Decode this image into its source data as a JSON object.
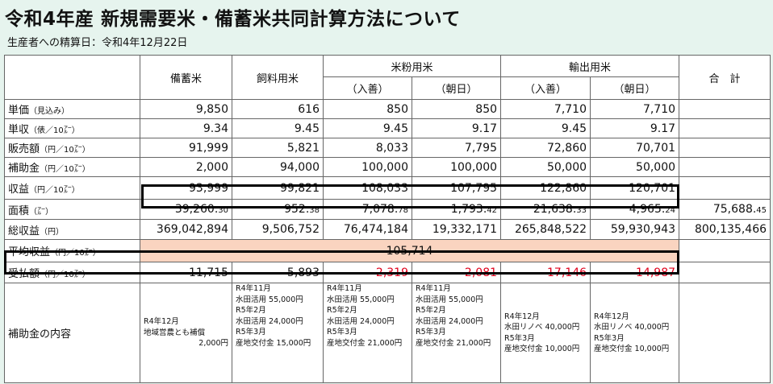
{
  "title": "令和4年産 新規需要米・備蓄米共同計算方法について",
  "subtitle": "生産者への精算日：令和4年12月22日",
  "headers": {
    "bichiku": "備蓄米",
    "shiryo": "飼料用米",
    "komeko": "米粉用米",
    "yushutsu": "輸出用米",
    "iri": "（入善）",
    "asahi": "（朝日）",
    "total": "合　計"
  },
  "rows": [
    {
      "label": "単価",
      "unit": "（見込み）",
      "values": [
        "9,850",
        "616",
        "850",
        "850",
        "7,710",
        "7,710"
      ],
      "total": ""
    },
    {
      "label": "単収",
      "unit": "（俵／10㌃）",
      "values": [
        "9.34",
        "9.45",
        "9.45",
        "9.17",
        "9.45",
        "9.17"
      ],
      "total": ""
    },
    {
      "label": "販売額",
      "unit": "（円／10㌃）",
      "values": [
        "91,999",
        "5,821",
        "8,033",
        "7,795",
        "72,860",
        "70,701"
      ],
      "total": ""
    },
    {
      "label": "補助金",
      "unit": "（円／10㌃）",
      "values": [
        "2,000",
        "94,000",
        "100,000",
        "100,000",
        "50,000",
        "50,000"
      ],
      "total": ""
    },
    {
      "label": "収益",
      "unit": "（円／10㌃）",
      "values": [
        "93,999",
        "99,821",
        "108,033",
        "107,795",
        "122,860",
        "120,701"
      ],
      "total": ""
    }
  ],
  "area": {
    "label": "面積",
    "unit": "（㌃）",
    "values": [
      {
        "int": "39,260.",
        "dec": "30"
      },
      {
        "int": "952.",
        "dec": "38"
      },
      {
        "int": "7,078.",
        "dec": "78"
      },
      {
        "int": "1,793.",
        "dec": "42"
      },
      {
        "int": "21,638.",
        "dec": "33"
      },
      {
        "int": "4,965.",
        "dec": "24"
      }
    ],
    "total": {
      "int": "75,688.",
      "dec": "45"
    }
  },
  "total_revenue": {
    "label": "総収益",
    "unit": "（円）",
    "values": [
      "369,042,894",
      "9,506,752",
      "76,474,184",
      "19,332,171",
      "265,848,522",
      "59,930,943"
    ],
    "total": "800,135,466"
  },
  "average": {
    "label": "平均収益",
    "unit": "（円／10㌃）",
    "value": "105,714"
  },
  "payment": {
    "label": "受払額",
    "unit": "（円／10㌃）",
    "values": [
      "11,715",
      "5,893",
      "-2,319",
      "-2,081",
      "-17,146",
      "-14,987"
    ]
  },
  "subsidy_details": {
    "label": "補助金の内容",
    "cells": [
      [
        "R4年12月",
        "地域営農とも補償",
        "2,000円"
      ],
      [
        "R4年11月",
        "水田活用 55,000円",
        "R5年2月",
        "水田活用 24,000円",
        "R5年3月",
        "産地交付金 15,000円"
      ],
      [
        "R4年11月",
        "水田活用 55,000円",
        "R5年2月",
        "水田活用 24,000円",
        "R5年3月",
        "産地交付金 21,000円"
      ],
      [
        "R4年11月",
        "水田活用 55,000円",
        "R5年2月",
        "水田活用 24,000円",
        "R5年3月",
        "産地交付金 21,000円"
      ],
      [
        "R4年12月",
        "水田リノベ 40,000円",
        "R5年3月",
        "産地交付金 10,000円"
      ],
      [
        "R4年12月",
        "水田リノベ 40,000円",
        "R5年3月",
        "産地交付金 10,000円"
      ]
    ]
  },
  "colors": {
    "background": "#e6f4ee",
    "negative": "#e0001b",
    "average_fill": "#fad4c0"
  }
}
